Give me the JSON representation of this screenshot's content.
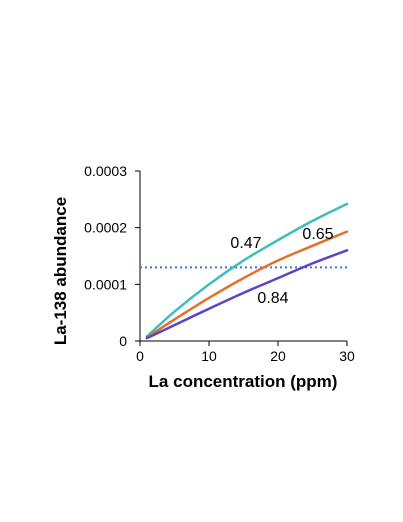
{
  "chart_data": {
    "type": "line",
    "title": "",
    "xlabel": "La concentration (ppm)",
    "ylabel": "La-138 abundance",
    "xlim": [
      0,
      30
    ],
    "ylim": [
      0,
      0.0003
    ],
    "x_ticks": [
      0,
      10,
      20,
      30
    ],
    "x_tick_labels": [
      "0",
      "10",
      "20",
      "30"
    ],
    "y_ticks": [
      0,
      0.0001,
      0.0002,
      0.0003
    ],
    "y_tick_labels": [
      "0",
      "0.0001",
      "0.0002",
      "0.0003"
    ],
    "grid": false,
    "legend": "none",
    "series": [
      {
        "label": "0.47",
        "color": "#3dbdbd",
        "x": [
          1,
          5,
          10,
          15,
          20,
          25,
          30
        ],
        "y": [
          8e-06,
          5.2e-05,
          0.0001,
          0.000142,
          0.000178,
          0.000212,
          0.000242
        ]
      },
      {
        "label": "0.65",
        "color": "#e2702b",
        "x": [
          1,
          5,
          10,
          15,
          20,
          25,
          30
        ],
        "y": [
          6e-06,
          3.8e-05,
          7.6e-05,
          0.000111,
          0.000142,
          0.000168,
          0.000193
        ]
      },
      {
        "label": "0.84",
        "color": "#5a45c5",
        "x": [
          1,
          5,
          10,
          15,
          20,
          25,
          30
        ],
        "y": [
          5e-06,
          2.8e-05,
          5.7e-05,
          8.5e-05,
          0.000111,
          0.000137,
          0.00016
        ]
      }
    ],
    "reference_line": {
      "y": 0.00013,
      "color": "#3f73d6",
      "style": "dotted"
    }
  }
}
